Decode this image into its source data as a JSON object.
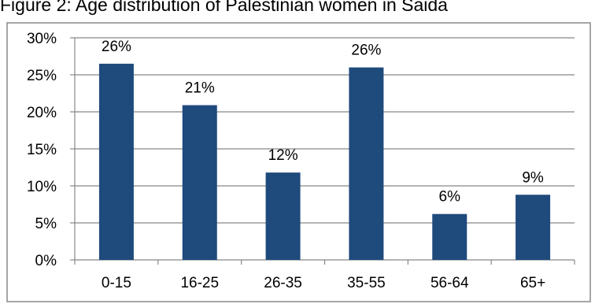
{
  "figure_title": "Figure 2: Age distribution of Palestinian women in Saida",
  "chart_data": {
    "type": "bar",
    "title": "Figure 2: Age distribution of Palestinian women in Saida",
    "xlabel": "",
    "ylabel": "",
    "categories": [
      "0-15",
      "16-25",
      "26-35",
      "35-55",
      "56-64",
      "65+"
    ],
    "values": [
      26.5,
      20.9,
      11.8,
      26.0,
      6.2,
      8.8
    ],
    "data_labels": [
      "26%",
      "21%",
      "12%",
      "26%",
      "6%",
      "9%"
    ],
    "ylim": [
      0,
      30
    ],
    "yticks": [
      0,
      5,
      10,
      15,
      20,
      25,
      30
    ],
    "ytick_labels": [
      "0%",
      "5%",
      "10%",
      "15%",
      "20%",
      "25%",
      "30%"
    ],
    "grid": true,
    "legend": "none",
    "bar_color": "#1f4a7c",
    "grid_color": "#888888",
    "border_color": "#888888"
  }
}
